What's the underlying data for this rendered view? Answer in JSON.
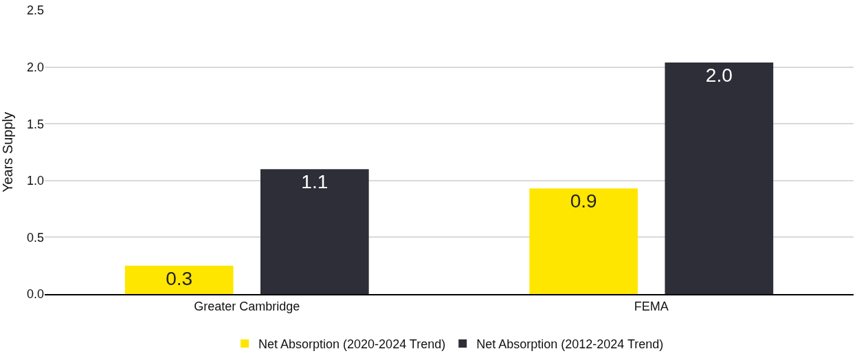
{
  "chart_data": {
    "type": "bar",
    "ylabel": "Years Supply",
    "categories": [
      "Greater Cambridge",
      "FEMA"
    ],
    "series": [
      {
        "name": "Net Absorption (2020-2024 Trend)",
        "color": "#ffe600",
        "values": [
          0.25,
          0.93
        ],
        "value_labels": [
          "0.3",
          "0.9"
        ]
      },
      {
        "name": "Net Absorption (2012-2024 Trend)",
        "color": "#2e2e38",
        "values": [
          1.1,
          2.04
        ],
        "value_labels": [
          "1.1",
          "2.0"
        ]
      }
    ],
    "ylim": [
      0,
      2.5
    ],
    "yticks": [
      {
        "value": 0,
        "label": "0.0"
      },
      {
        "value": 0.5,
        "label": "0.5"
      },
      {
        "value": 1,
        "label": "1.0"
      },
      {
        "value": 1.5,
        "label": "1.5"
      },
      {
        "value": 2,
        "label": "2.0"
      },
      {
        "value": 2.5,
        "label": "2.5"
      }
    ],
    "grid": "y",
    "legend": "bottom"
  }
}
